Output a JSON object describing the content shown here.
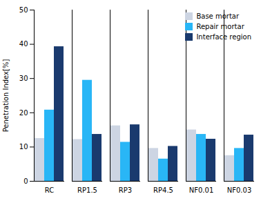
{
  "chart_data": {
    "type": "bar",
    "categories": [
      "RC",
      "RP1.5",
      "RP3",
      "RP4.5",
      "NF0.01",
      "NF0.03"
    ],
    "series": [
      {
        "name": "Base mortar",
        "color": "#cdd5e3",
        "values": [
          12.5,
          12.2,
          16.2,
          9.6,
          15.0,
          7.5
        ]
      },
      {
        "name": "Repair mortar",
        "color": "#29b6f6",
        "values": [
          20.8,
          29.5,
          11.4,
          6.5,
          13.7,
          9.6
        ]
      },
      {
        "name": "Interface region",
        "color": "#1a3a6e",
        "values": [
          39.3,
          13.7,
          16.5,
          10.2,
          12.3,
          13.5
        ]
      }
    ],
    "ylabel": "Penetration Index[%]",
    "ylim": [
      0,
      50
    ],
    "yticks": [
      0,
      10,
      20,
      30,
      40,
      50
    ],
    "grid": false,
    "legend": "upper right"
  }
}
